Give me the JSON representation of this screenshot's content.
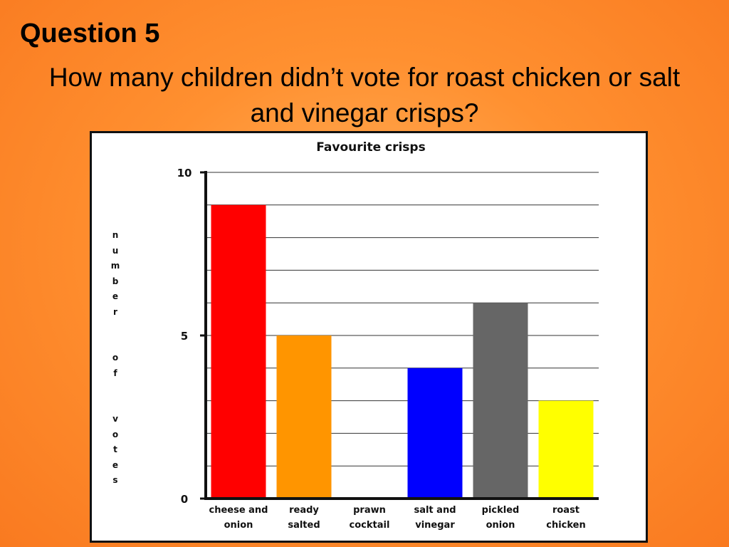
{
  "slide": {
    "question_label": "Question 5",
    "question_text": "How many children didn’t vote for roast chicken or salt and vinegar crisps?"
  },
  "chart_data": {
    "type": "bar",
    "title": "Favourite crisps",
    "ylabel": "n u m b e r   o f   v o t e s",
    "xlabel": "",
    "ylim": [
      0,
      10
    ],
    "yticks": [
      0,
      5,
      10
    ],
    "grid": true,
    "categories": [
      [
        "cheese and",
        "onion"
      ],
      [
        "ready",
        "salted"
      ],
      [
        "prawn",
        "cocktail"
      ],
      [
        "salt and",
        "vinegar"
      ],
      [
        "pickled",
        "onion"
      ],
      [
        "roast",
        "chicken"
      ]
    ],
    "values": [
      9,
      5,
      0,
      4,
      6,
      3
    ],
    "colors": [
      "#ff0000",
      "#ff9500",
      "#ffffff",
      "#0000ff",
      "#666666",
      "#ffff00"
    ]
  }
}
